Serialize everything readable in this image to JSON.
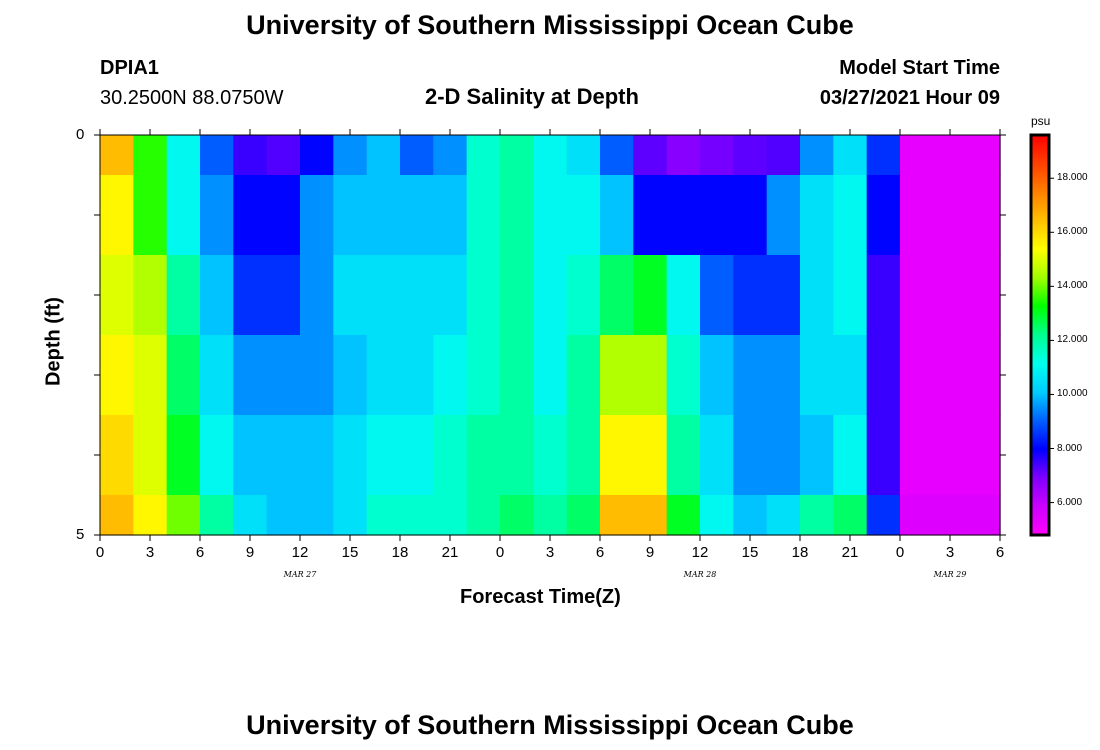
{
  "header": {
    "title_top": "University of Southern Mississippi Ocean Cube",
    "title_bottom": "University of Southern Mississippi Ocean Cube",
    "station_id": "DPIA1",
    "station_coords": "30.2500N  88.0750W",
    "plot_title": "2-D Salinity at Depth",
    "model_start_label": "Model Start Time",
    "model_start_value": "03/27/2021 Hour 09"
  },
  "colorbar": {
    "unit": "psu",
    "ticks": [
      "18.000",
      "16.000",
      "14.000",
      "12.000",
      "10.000",
      "8.000",
      "6.000"
    ],
    "tick_values": [
      18,
      16,
      14,
      12,
      10,
      8,
      6
    ],
    "range": [
      4.8,
      19.6
    ],
    "colors": [
      "#ff00ff",
      "#cc00ff",
      "#8000ff",
      "#0000ff",
      "#0060ff",
      "#00ccff",
      "#00ffee",
      "#00ff90",
      "#00ff00",
      "#a0ff00",
      "#ffff00",
      "#ffc000",
      "#ff8000",
      "#ff4000",
      "#ff0000"
    ]
  },
  "chart_data": {
    "type": "heatmap",
    "xlabel": "Forecast Time(Z)",
    "ylabel": "Depth (ft)",
    "ylim": [
      0,
      5
    ],
    "y_tick_labels": [
      "0",
      "5"
    ],
    "x_tick_labels": [
      "0",
      "3",
      "6",
      "9",
      "12",
      "15",
      "18",
      "21",
      "0",
      "3",
      "6",
      "9",
      "12",
      "15",
      "18",
      "21",
      "0",
      "3",
      "6"
    ],
    "date_labels": [
      {
        "text": "MAR 27",
        "hour": 12
      },
      {
        "text": "MAR 28",
        "hour": 36
      },
      {
        "text": "MAR 29",
        "hour": 51
      }
    ],
    "x_hours": [
      0,
      2,
      4,
      6,
      8,
      10,
      12,
      14,
      16,
      18,
      20,
      22,
      24,
      26,
      28,
      30,
      32,
      34,
      36,
      38,
      40,
      42,
      44,
      46,
      48,
      50,
      52,
      54
    ],
    "depth_bins": [
      [
        0,
        0.5
      ],
      [
        0.5,
        1.5
      ],
      [
        1.5,
        2.5
      ],
      [
        2.5,
        3.5
      ],
      [
        3.5,
        4.5
      ],
      [
        4.5,
        5
      ]
    ],
    "values": [
      [
        16.5,
        13.5,
        11.0,
        9.0,
        7.5,
        7.3,
        8.0,
        9.5,
        10.0,
        9.0,
        9.5,
        11.5,
        12.0,
        11.0,
        10.5,
        9.0,
        7.2,
        6.8,
        7.0,
        7.2,
        7.3,
        9.5,
        10.5,
        8.5,
        5.3,
        5.3,
        5.3,
        5.3
      ],
      [
        15.5,
        13.5,
        11.0,
        9.5,
        8.0,
        8.0,
        9.5,
        10.0,
        10.0,
        10.0,
        10.0,
        11.5,
        12.0,
        11.0,
        11.0,
        10.0,
        8.0,
        8.0,
        8.0,
        8.0,
        9.5,
        10.5,
        11.0,
        8.0,
        5.3,
        5.3,
        5.3,
        5.3
      ],
      [
        15.0,
        14.5,
        12.0,
        10.0,
        8.5,
        8.5,
        9.5,
        10.5,
        10.5,
        10.5,
        10.5,
        11.5,
        12.0,
        11.0,
        11.5,
        12.5,
        13.0,
        11.0,
        9.0,
        8.5,
        8.5,
        10.5,
        11.0,
        7.5,
        5.3,
        5.3,
        5.3,
        5.3
      ],
      [
        15.5,
        15.0,
        12.5,
        10.5,
        9.5,
        9.5,
        9.5,
        10.0,
        10.5,
        10.5,
        11.0,
        11.5,
        12.0,
        11.0,
        12.0,
        14.5,
        14.5,
        11.5,
        10.0,
        9.5,
        9.5,
        10.5,
        10.5,
        7.5,
        5.3,
        5.3,
        5.3,
        5.3
      ],
      [
        16.0,
        15.0,
        13.0,
        11.0,
        10.0,
        10.0,
        10.0,
        10.5,
        11.0,
        11.0,
        11.5,
        12.0,
        12.0,
        11.5,
        12.0,
        15.5,
        15.5,
        12.0,
        10.5,
        9.5,
        9.5,
        10.0,
        11.0,
        7.5,
        5.3,
        5.3,
        5.3,
        5.3
      ],
      [
        16.5,
        15.5,
        14.0,
        12.0,
        10.5,
        10.0,
        10.0,
        10.5,
        11.5,
        11.5,
        11.5,
        12.0,
        12.5,
        12.0,
        12.5,
        16.5,
        16.5,
        13.0,
        11.0,
        10.0,
        10.5,
        12.0,
        12.5,
        8.5,
        5.5,
        5.5,
        5.5,
        5.5
      ]
    ]
  }
}
